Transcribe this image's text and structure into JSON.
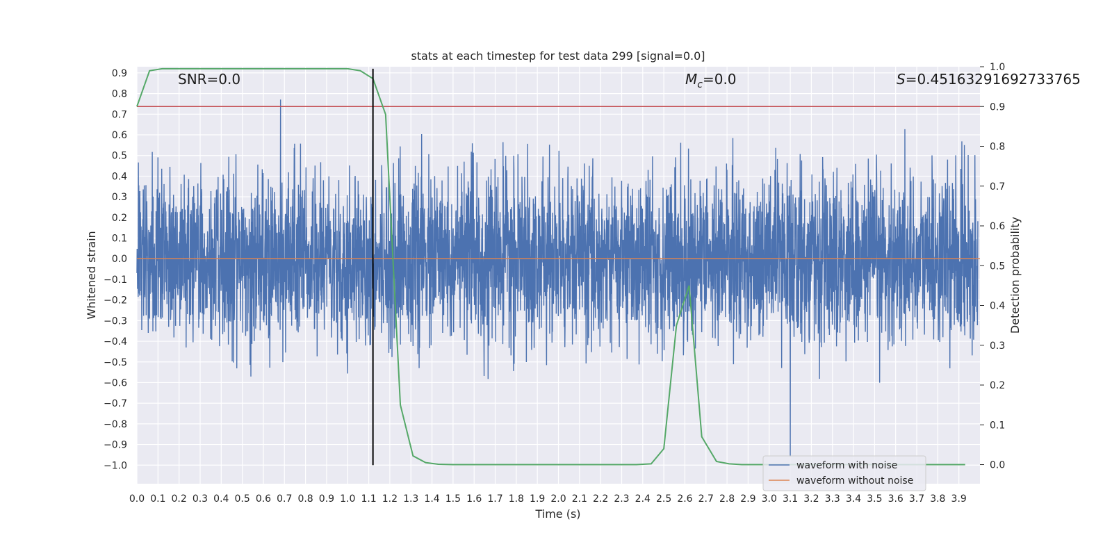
{
  "chart_data": {
    "type": "line",
    "title": "stats at each timestep for test data 299 [signal=0.0]",
    "xlabel": "Time (s)",
    "ylabel": "Whitened strain",
    "ylabel_right": "Detection probability",
    "xlim": [
      0.0,
      4.0
    ],
    "ylim": [
      -1.09,
      0.93
    ],
    "ylim_right": [
      -0.048,
      1.0
    ],
    "x_ticks": [
      "0.0",
      "0.1",
      "0.2",
      "0.3",
      "0.4",
      "0.5",
      "0.6",
      "0.7",
      "0.8",
      "0.9",
      "1.0",
      "1.1",
      "1.2",
      "1.3",
      "1.4",
      "1.5",
      "1.6",
      "1.7",
      "1.8",
      "1.9",
      "2.0",
      "2.1",
      "2.2",
      "2.3",
      "2.4",
      "2.5",
      "2.6",
      "2.7",
      "2.8",
      "2.9",
      "3.0",
      "3.1",
      "3.2",
      "3.3",
      "3.4",
      "3.5",
      "3.6",
      "3.7",
      "3.8",
      "3.9"
    ],
    "y_ticks": [
      "0.9",
      "0.8",
      "0.7",
      "0.6",
      "0.5",
      "0.4",
      "0.3",
      "0.2",
      "0.1",
      "0.0",
      "−0.1",
      "−0.2",
      "−0.3",
      "−0.4",
      "−0.5",
      "−0.6",
      "−0.7",
      "−0.8",
      "−0.9",
      "−1.0"
    ],
    "y_right_ticks": [
      "1.0",
      "0.9",
      "0.8",
      "0.7",
      "0.6",
      "0.5",
      "0.4",
      "0.3",
      "0.2",
      "0.1",
      "0.0"
    ],
    "annotations": {
      "snr": "SNR=0.0",
      "mc_symbol": "M",
      "mc_sub": "c",
      "mc_value": "=0.0",
      "s_symbol": "S",
      "s_value": "=0.45163291692733765"
    },
    "series": [
      {
        "name": "waveform with noise",
        "color": "#4c72b0",
        "noise_std": 0.2,
        "x_range": [
          0.0,
          3.99
        ]
      },
      {
        "name": "waveform without noise",
        "color": "#dd8452",
        "value": 0.0
      },
      {
        "name": "Detection probability",
        "color": "#55a868",
        "axis": "right",
        "x": [
          0.0,
          0.06,
          0.12,
          0.19,
          0.25,
          0.31,
          0.37,
          0.44,
          0.5,
          0.56,
          0.62,
          0.69,
          0.75,
          0.81,
          0.87,
          0.94,
          1.0,
          1.06,
          1.12,
          1.18,
          1.25,
          1.31,
          1.37,
          1.43,
          1.5,
          1.56,
          1.62,
          1.68,
          1.75,
          1.81,
          1.87,
          1.93,
          2.0,
          2.06,
          2.12,
          2.18,
          2.25,
          2.31,
          2.37,
          2.44,
          2.5,
          2.56,
          2.62,
          2.68,
          2.75,
          2.81,
          2.87,
          2.93,
          3.0,
          3.06,
          3.12,
          3.18,
          3.25,
          3.31,
          3.37,
          3.43,
          3.5,
          3.56,
          3.62,
          3.68,
          3.75,
          3.81,
          3.87,
          3.93
        ],
        "y": [
          0.9,
          0.99,
          0.995,
          0.995,
          0.995,
          0.995,
          0.995,
          0.995,
          0.995,
          0.995,
          0.995,
          0.995,
          0.995,
          0.995,
          0.995,
          0.995,
          0.995,
          0.99,
          0.97,
          0.88,
          0.15,
          0.022,
          0.005,
          0.001,
          0.0,
          0.0,
          0.0,
          0.0,
          0.0,
          0.0,
          0.0,
          0.0,
          0.0,
          0.0,
          0.0,
          0.0,
          0.0,
          0.0,
          0.0,
          0.002,
          0.04,
          0.35,
          0.45,
          0.07,
          0.008,
          0.002,
          0.0,
          0.0,
          0.0,
          0.0,
          0.0,
          0.0,
          0.0,
          0.0,
          0.0,
          0.0,
          0.0,
          0.0,
          0.0,
          0.0,
          0.0,
          0.0,
          0.0,
          0.0
        ]
      },
      {
        "name": "threshold",
        "color": "#c44e52",
        "axis": "right",
        "value": 0.9
      },
      {
        "name": "detection time",
        "color": "#000000",
        "x": 1.12
      }
    ],
    "legend": {
      "position": "lower-right",
      "entries": [
        "waveform with noise",
        "waveform without noise"
      ]
    }
  }
}
